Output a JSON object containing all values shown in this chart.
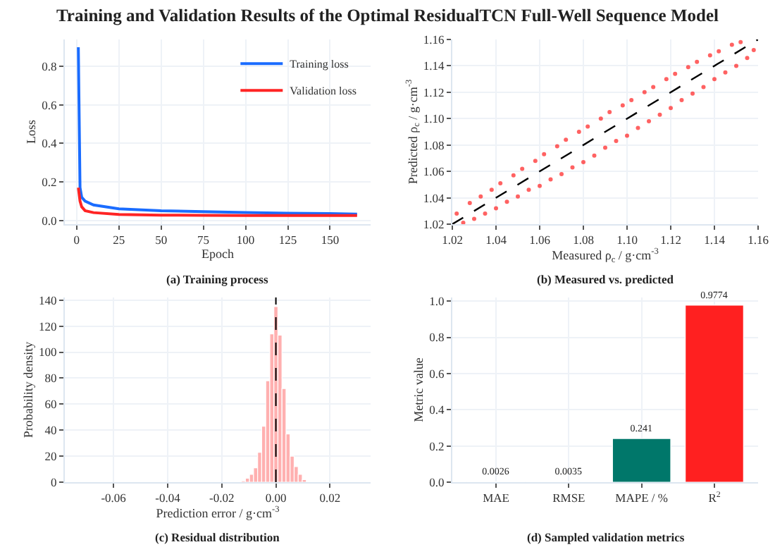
{
  "chart_data": [
    {
      "type": "line",
      "title": "Training and Validation Results of the Optimal ResidualTCN Full-Well Sequence Model",
      "xlabel": "Epoch",
      "ylabel": "Loss",
      "annotations": [
        "(a) Training process"
      ],
      "legend": "top right",
      "grid": true,
      "xlim": [
        -7,
        174
      ],
      "xticks": [
        0,
        25,
        50,
        75,
        100,
        125,
        150
      ],
      "ylim": [
        -0.02,
        0.94
      ],
      "yticks": [
        {
          "value": 0,
          "label": "0.0"
        },
        0.2,
        0.4,
        0.6,
        0.8
      ],
      "series": [
        {
          "name": "Training loss",
          "color": "#1a6cff",
          "x": [
            1,
            2,
            3,
            5,
            10,
            25,
            50,
            75,
            100,
            125,
            150,
            166
          ],
          "values": [
            0.9,
            0.17,
            0.12,
            0.1,
            0.08,
            0.06,
            0.05,
            0.045,
            0.04,
            0.037,
            0.035,
            0.032
          ]
        },
        {
          "name": "Validation loss",
          "color": "#ff2424",
          "x": [
            1,
            2,
            3,
            5,
            10,
            25,
            50,
            75,
            100,
            125,
            150,
            166
          ],
          "values": [
            0.17,
            0.1,
            0.07,
            0.05,
            0.04,
            0.03,
            0.027,
            0.026,
            0.025,
            0.025,
            0.025,
            0.025
          ]
        }
      ]
    },
    {
      "type": "scatter",
      "xlabel": "Measured ρ$_{c}$ / g·cm$^{-3}$",
      "ylabel": "Predicted ρ$_{c}$ / g·cm$^{-3}$",
      "annotations": [
        "(b) Measured vs. predicted"
      ],
      "grid": true,
      "marker": "circle",
      "xlim": [
        1.02,
        1.16
      ],
      "xticks": [
        1.02,
        1.04,
        1.06,
        1.08,
        {
          "value": 1.1,
          "label": "1.10"
        },
        1.12,
        1.14,
        1.16
      ],
      "ylim": [
        1.02,
        1.16
      ],
      "yticks": [
        1.02,
        1.04,
        1.06,
        1.08,
        {
          "value": 1.1,
          "label": "1.10"
        },
        1.12,
        1.14,
        1.16
      ],
      "series": [
        {
          "color": "#ff2020",
          "x": [
            1.022,
            1.025,
            1.028,
            1.03,
            1.033,
            1.035,
            1.038,
            1.04,
            1.042,
            1.045,
            1.048,
            1.05,
            1.052,
            1.055,
            1.058,
            1.06,
            1.062,
            1.065,
            1.068,
            1.07,
            1.072,
            1.075,
            1.078,
            1.08,
            1.082,
            1.085,
            1.088,
            1.09,
            1.092,
            1.095,
            1.098,
            1.1,
            1.102,
            1.105,
            1.108,
            1.11,
            1.112,
            1.115,
            1.118,
            1.12,
            1.122,
            1.125,
            1.128,
            1.13,
            1.132,
            1.135,
            1.138,
            1.14,
            1.142,
            1.145,
            1.148,
            1.15,
            1.152,
            1.155,
            1.158
          ],
          "values": [
            1.028,
            1.021,
            1.036,
            1.024,
            1.041,
            1.028,
            1.046,
            1.032,
            1.051,
            1.037,
            1.057,
            1.041,
            1.062,
            1.046,
            1.068,
            1.049,
            1.073,
            1.054,
            1.079,
            1.058,
            1.084,
            1.063,
            1.09,
            1.067,
            1.094,
            1.072,
            1.1,
            1.078,
            1.105,
            1.083,
            1.11,
            1.087,
            1.114,
            1.093,
            1.12,
            1.098,
            1.124,
            1.103,
            1.13,
            1.108,
            1.134,
            1.114,
            1.139,
            1.119,
            1.143,
            1.124,
            1.148,
            1.13,
            1.151,
            1.135,
            1.156,
            1.14,
            1.158,
            1.146,
            1.152
          ]
        },
        {
          "type": "line",
          "color": "#000000",
          "line_style": "dashed",
          "marker": "none",
          "x": [
            1.02,
            1.16
          ],
          "values": [
            1.02,
            1.16
          ]
        }
      ]
    },
    {
      "type": "histogram",
      "xlabel": "Prediction error / g·cm$^{-3}$",
      "ylabel": "Probability density",
      "annotations": [
        "(c) Residual distribution"
      ],
      "grid": true,
      "color": "#ffb0b0",
      "xlim": [
        -0.078,
        0.035
      ],
      "xticks": [
        -0.06,
        -0.04,
        -0.02,
        {
          "value": 0,
          "label": "0.00"
        },
        0.02
      ],
      "ylim": [
        0,
        142
      ],
      "yticks": [
        0,
        20,
        40,
        60,
        80,
        100,
        120,
        140
      ],
      "bins": [
        -0.01275,
        -0.01125,
        -0.00975,
        -0.00825,
        -0.00675,
        -0.00525,
        -0.00375,
        -0.00225,
        -0.00075,
        0.00075,
        0.00225,
        0.00375,
        0.00525,
        0.00675,
        0.00825,
        0.00975,
        0.01125
      ],
      "values": [
        1,
        3,
        6,
        11,
        23,
        43,
        78,
        114,
        135,
        113,
        72,
        37,
        20,
        12,
        6,
        2
      ],
      "ref_lines": [
        {
          "axis": "x",
          "value": 0,
          "color": "#000000",
          "line_style": "dashed"
        }
      ]
    },
    {
      "type": "bar",
      "ylabel": "Metric value",
      "annotations": [
        "(d) Sampled validation metrics"
      ],
      "grid": true,
      "data_labels": true,
      "categories": [
        "MAE",
        "RMSE",
        "MAPE / %",
        "R$^{2}$"
      ],
      "values": [
        0.0026,
        0.0035,
        0.241,
        0.9774
      ],
      "colors": [
        "#2b5fa8",
        "#f08a24",
        "#00776a",
        "#ff2020"
      ],
      "ylim": [
        0,
        1.02
      ],
      "yticks": [
        {
          "value": 0,
          "label": "0.0"
        },
        0.2,
        0.4,
        0.6,
        0.8,
        {
          "value": 1,
          "label": "1.0"
        }
      ]
    }
  ]
}
